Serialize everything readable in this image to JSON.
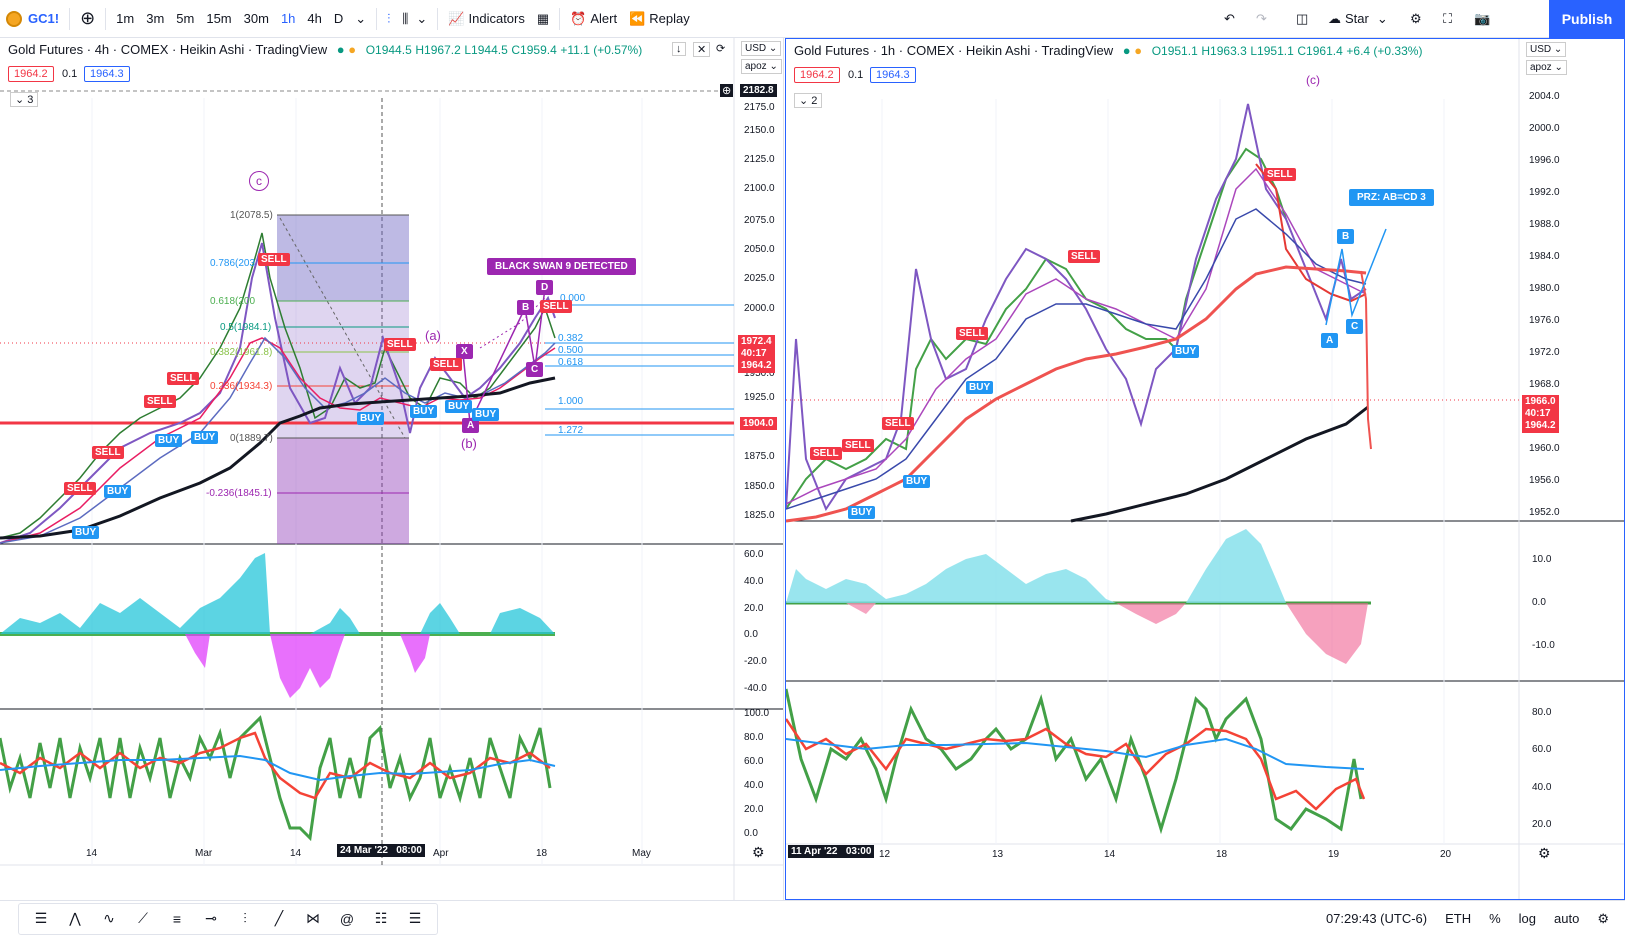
{
  "toolbar": {
    "symbol": "GC1!",
    "intervals": [
      "1m",
      "3m",
      "5m",
      "15m",
      "30m",
      "1h",
      "4h",
      "D"
    ],
    "active_interval": "1h",
    "indicators_label": "Indicators",
    "alert_label": "Alert",
    "replay_label": "Replay",
    "layout_label": "Star",
    "publish_label": "Publish"
  },
  "left_chart": {
    "title": "Gold Futures · 4h · COMEX · Heikin Ashi · TradingView",
    "open": "O1944.5",
    "high": "H1967.2",
    "low": "L1944.5",
    "close": "C1959.4",
    "change": "+11.1 (+0.57%)",
    "bid": "1964.2",
    "spread": "0.1",
    "ask": "1964.3",
    "indicator_count": "3",
    "currency": "USD",
    "ruler_label": "apoz",
    "price_ticks": [
      "2175.0",
      "2150.0",
      "2125.0",
      "2100.0",
      "2075.0",
      "2050.0",
      "2025.0",
      "2000.0",
      "1950.0",
      "1925.0",
      "1875.0",
      "1850.0",
      "1825.0"
    ],
    "crosshair_price": "2182.8",
    "last_price": "1972.4",
    "countdown": "40:17",
    "bid_price": "1964.2",
    "red_line_price": "1904.0",
    "osc_ticks": [
      "60.0",
      "40.0",
      "20.0",
      "0.0",
      "-20.0",
      "-40.0"
    ],
    "rsi_ticks": [
      "100.0",
      "80.0",
      "60.0",
      "40.0",
      "20.0",
      "0.0"
    ],
    "time_ticks": [
      "14",
      "Mar",
      "14",
      "Apr",
      "18",
      "May"
    ],
    "crosshair_time": "24 Mar '22   08:00",
    "fib_labels": [
      "1(2078.5)",
      "0.786(203",
      "0.618(200",
      "0.5(1984.1)",
      "0.382(1961.8)",
      "0.236(1934.3)",
      "0(1889.7)",
      "-0.236(1845.1)"
    ],
    "harmonic_labels": [
      "0.000",
      "0.382",
      "0.500",
      "0.618",
      "1.000",
      "1.272"
    ],
    "wave_labels": [
      "(a)",
      "(b)",
      "c"
    ],
    "banner": "BLACK SWAN 9 DETECTED",
    "points": [
      "X",
      "A",
      "B",
      "C",
      "D"
    ],
    "signals": {
      "sell": "SELL",
      "buy": "BUY"
    }
  },
  "right_chart": {
    "title": "Gold Futures · 1h · COMEX · Heikin Ashi · TradingView",
    "open": "O1951.1",
    "high": "H1963.3",
    "low": "L1951.1",
    "close": "C1961.4",
    "change": "+6.4 (+0.33%)",
    "bid": "1964.2",
    "spread": "0.1",
    "ask": "1964.3",
    "indicator_count": "2",
    "currency": "USD",
    "ruler_label": "apoz",
    "price_ticks": [
      "2004.0",
      "2000.0",
      "1996.0",
      "1992.0",
      "1988.0",
      "1984.0",
      "1980.0",
      "1976.0",
      "1972.0",
      "1968.0",
      "1960.0",
      "1956.0",
      "1952.0"
    ],
    "last_price": "1966.0",
    "countdown": "40:17",
    "bid_price": "1964.2",
    "osc_ticks": [
      "10.0",
      "0.0",
      "-10.0"
    ],
    "rsi_ticks": [
      "80.0",
      "60.0",
      "40.0",
      "20.0"
    ],
    "time_ticks": [
      "12",
      "13",
      "14",
      "18",
      "19",
      "20"
    ],
    "crosshair_time": "11 Apr '22   03:00",
    "wave_label": "(c)",
    "prz_label": "PRZ: AB=CD 3",
    "points": [
      "A",
      "B",
      "C"
    ]
  },
  "statusbar": {
    "clock": "07:29:43 (UTC-6)",
    "session": "ETH",
    "percent": "%",
    "log": "log",
    "auto": "auto"
  }
}
